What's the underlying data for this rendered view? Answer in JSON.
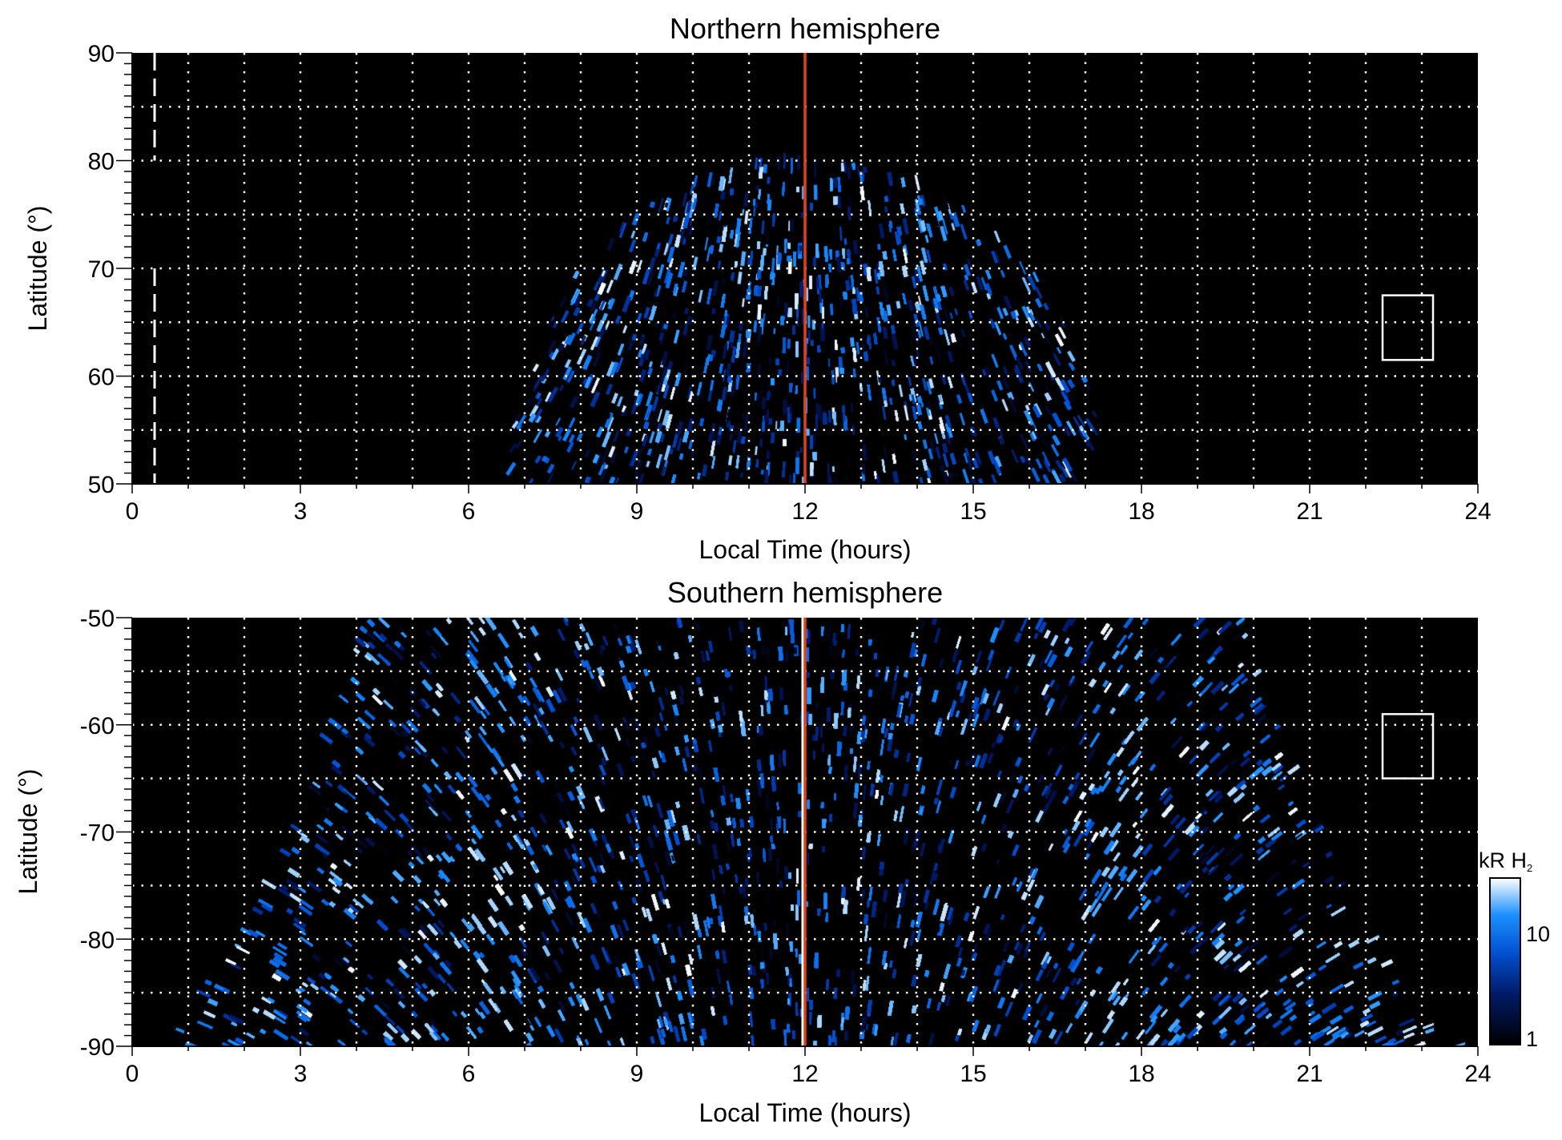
{
  "chart_data": [
    {
      "type": "heatmap",
      "title": "Northern hemisphere",
      "xlabel": "Local Time (hours)",
      "ylabel": "Latitude (°)",
      "xlim": [
        0,
        24
      ],
      "ylim": [
        50,
        90
      ],
      "xticks": [
        "0",
        "3",
        "6",
        "9",
        "12",
        "15",
        "18",
        "21",
        "24"
      ],
      "yticks": [
        "50",
        "60",
        "70",
        "80",
        "90"
      ],
      "grid": true,
      "reference_line_x": 12,
      "reference_line_color": "#e0401a",
      "dashed_line_x": 0.4,
      "box": {
        "x": [
          22.3,
          23.2
        ],
        "y": [
          61.5,
          67.5
        ]
      }
    },
    {
      "type": "heatmap",
      "title": "Southern hemisphere",
      "xlabel": "Local Time (hours)",
      "ylabel": "Latitude (°)",
      "xlim": [
        0,
        24
      ],
      "ylim": [
        -90,
        -50
      ],
      "xticks": [
        "0",
        "3",
        "6",
        "9",
        "12",
        "15",
        "18",
        "21",
        "24"
      ],
      "yticks": [
        "-90",
        "-80",
        "-70",
        "-60",
        "-50"
      ],
      "grid": true,
      "reference_line_x": 12,
      "reference_line_color": "#e0401a",
      "box": {
        "x": [
          22.3,
          23.2
        ],
        "y": [
          -65,
          -59
        ]
      }
    }
  ],
  "colorbar": {
    "label": "kR H",
    "label_sub": "2",
    "scale": "log",
    "range": [
      1,
      25
    ],
    "ticks": [
      "1",
      "10"
    ],
    "colors": [
      "#000000",
      "#001a66",
      "#0050d0",
      "#1e90ff",
      "#ffffff"
    ]
  }
}
